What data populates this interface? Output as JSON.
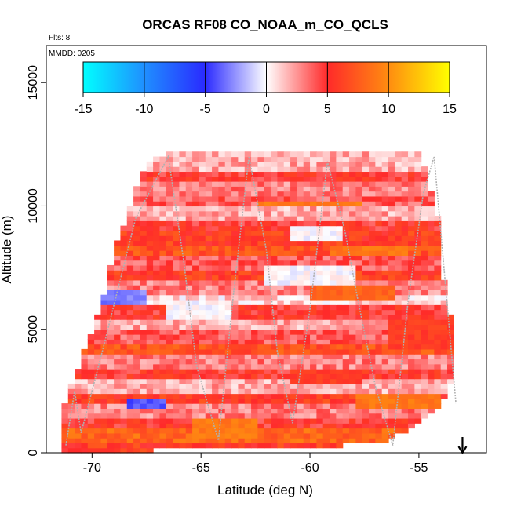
{
  "chart_data": {
    "type": "heatmap",
    "title": "ORCAS RF08 CO_NOAA_m_CO_QCLS",
    "annotations": [
      "Flts: 8",
      "MMDD: 0205"
    ],
    "xlabel": "Latitude (deg N)",
    "ylabel": "Altitude (m)",
    "xlim": [
      -72.1,
      -51.9
    ],
    "ylim": [
      0,
      16500
    ],
    "x_ticks": [
      -70,
      -65,
      -60,
      -55
    ],
    "y_ticks": [
      0,
      5000,
      10000,
      15000
    ],
    "colorbar": {
      "min": -15,
      "max": 15,
      "ticks": [
        -15,
        -10,
        -5,
        0,
        5,
        10,
        15
      ],
      "stops": [
        {
          "v": -15,
          "color": "#00ffff"
        },
        {
          "v": -10,
          "color": "#1f8fff"
        },
        {
          "v": -5,
          "color": "#2a2aff"
        },
        {
          "v": 0,
          "color": "#ffffff"
        },
        {
          "v": 5,
          "color": "#ff2a2a"
        },
        {
          "v": 10,
          "color": "#ff8c10"
        },
        {
          "v": 15,
          "color": "#ffff00"
        }
      ]
    },
    "cell_size": {
      "lat": 0.3,
      "alt": 200
    },
    "envelope": {
      "lat": [
        -71.5,
        -71.5,
        -70.5,
        -69.5,
        -69.0,
        -67.5,
        -66.5,
        -55.0,
        -54.2,
        -53.8,
        -53.3,
        -53.3,
        -54.0,
        -55.0,
        -56.5,
        -58.5
      ],
      "alt": [
        0,
        1500,
        3800,
        6100,
        8200,
        11800,
        12200,
        12200,
        10000,
        6500,
        4500,
        3200,
        2000,
        1200,
        500,
        300
      ]
    },
    "bands": [
      {
        "alt": [
          0,
          500
        ],
        "value": 6
      },
      {
        "alt": [
          500,
          1000
        ],
        "value": 8
      },
      {
        "alt": [
          1000,
          1500
        ],
        "value": 5
      },
      {
        "alt": [
          1500,
          2000
        ],
        "value": 3
      },
      {
        "alt": [
          2000,
          2500
        ],
        "value": 6
      },
      {
        "alt": [
          2500,
          3000
        ],
        "value": 2
      },
      {
        "alt": [
          3000,
          3500
        ],
        "value": 5
      },
      {
        "alt": [
          3500,
          4000
        ],
        "value": 3
      },
      {
        "alt": [
          4000,
          4500
        ],
        "value": 7
      },
      {
        "alt": [
          4500,
          5000
        ],
        "value": 4
      },
      {
        "alt": [
          5000,
          5500
        ],
        "value": 2
      },
      {
        "alt": [
          5500,
          6000
        ],
        "value": 5
      },
      {
        "alt": [
          6000,
          6500
        ],
        "value": 1
      },
      {
        "alt": [
          6500,
          7000
        ],
        "value": 3
      },
      {
        "alt": [
          7000,
          7500
        ],
        "value": 6
      },
      {
        "alt": [
          7500,
          8000
        ],
        "value": 4
      },
      {
        "alt": [
          8000,
          8500
        ],
        "value": 7
      },
      {
        "alt": [
          8500,
          9000
        ],
        "value": 6
      },
      {
        "alt": [
          9000,
          9500
        ],
        "value": 5
      },
      {
        "alt": [
          9500,
          10000
        ],
        "value": 2
      },
      {
        "alt": [
          10000,
          10500
        ],
        "value": 4
      },
      {
        "alt": [
          10500,
          11000
        ],
        "value": 3
      },
      {
        "alt": [
          11000,
          11500
        ],
        "value": 5
      },
      {
        "alt": [
          11500,
          12200
        ],
        "value": 2
      }
    ],
    "patches": [
      {
        "lat": [
          -70.2,
          -67.5
        ],
        "alt": [
          6000,
          6600
        ],
        "value": -3
      },
      {
        "lat": [
          -66.5,
          -63.5
        ],
        "alt": [
          5400,
          6300
        ],
        "value": 0
      },
      {
        "lat": [
          -62.0,
          -58.0
        ],
        "alt": [
          6800,
          7600
        ],
        "value": 0
      },
      {
        "lat": [
          -61.0,
          -58.5
        ],
        "alt": [
          8600,
          9300
        ],
        "value": 0
      },
      {
        "lat": [
          -62.5,
          -57.5
        ],
        "alt": [
          10000,
          10300
        ],
        "value": 9
      },
      {
        "lat": [
          -59.0,
          -55.5
        ],
        "alt": [
          8000,
          8400
        ],
        "value": 9
      },
      {
        "lat": [
          -58.0,
          -54.0
        ],
        "alt": [
          1800,
          2400
        ],
        "value": 9
      },
      {
        "lat": [
          -65.5,
          -62.5
        ],
        "alt": [
          700,
          1500
        ],
        "value": 9
      },
      {
        "lat": [
          -61.0,
          -57.5
        ],
        "alt": [
          2800,
          3400
        ],
        "value": 6
      },
      {
        "lat": [
          -56.5,
          -53.5
        ],
        "alt": [
          4200,
          5500
        ],
        "value": 6
      },
      {
        "lat": [
          -68.5,
          -66.5
        ],
        "alt": [
          1900,
          2200
        ],
        "value": -4
      },
      {
        "lat": [
          -60.0,
          -56.0
        ],
        "alt": [
          6300,
          6800
        ],
        "value": 8
      }
    ],
    "flight_track": {
      "lat": [
        -71.2,
        -70.8,
        -70.5,
        -69.5,
        -68.0,
        -66.5,
        -65.8,
        -65.2,
        -64.2,
        -63.5,
        -62.8,
        -62.0,
        -61.5,
        -60.8,
        -60.0,
        -59.2,
        -58.4,
        -57.8,
        -57.0,
        -56.2,
        -55.5,
        -54.8,
        -54.3,
        -53.8,
        -53.3
      ],
      "alt": [
        300,
        2500,
        800,
        4200,
        9500,
        12000,
        7800,
        3500,
        500,
        6500,
        12000,
        8200,
        4100,
        1200,
        5800,
        11800,
        9000,
        6200,
        2700,
        300,
        6100,
        10500,
        12000,
        7000,
        2000
      ]
    },
    "arrow": {
      "lat": -53.0,
      "direction": "down"
    }
  }
}
